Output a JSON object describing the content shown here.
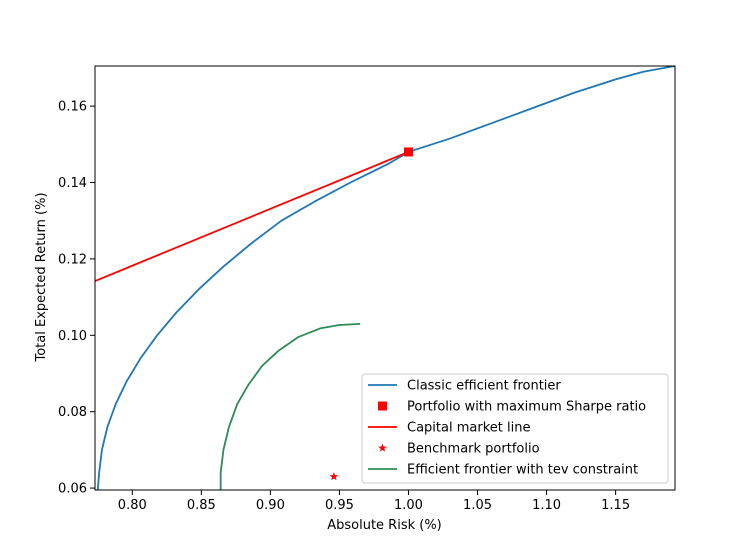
{
  "chart_data": {
    "type": "line",
    "xlabel": "Absolute Risk (%)",
    "ylabel": "Total Expected Return (%)",
    "xlim": [
      0.773,
      1.193
    ],
    "ylim": [
      0.0595,
      0.1705
    ],
    "grid": false,
    "legend_position": "bottom-right",
    "x_ticks": [
      {
        "value": 0.8,
        "label": "0.80"
      },
      {
        "value": 0.85,
        "label": "0.85"
      },
      {
        "value": 0.9,
        "label": "0.90"
      },
      {
        "value": 0.95,
        "label": "0.95"
      },
      {
        "value": 1.0,
        "label": "1.00"
      },
      {
        "value": 1.05,
        "label": "1.05"
      },
      {
        "value": 1.1,
        "label": "1.10"
      },
      {
        "value": 1.15,
        "label": "1.15"
      }
    ],
    "y_ticks": [
      {
        "value": 0.06,
        "label": "0.06"
      },
      {
        "value": 0.08,
        "label": "0.08"
      },
      {
        "value": 0.1,
        "label": "0.10"
      },
      {
        "value": 0.12,
        "label": "0.12"
      },
      {
        "value": 0.14,
        "label": "0.14"
      },
      {
        "value": 0.16,
        "label": "0.16"
      }
    ],
    "series": [
      {
        "name": "Classic efficient frontier",
        "kind": "line",
        "color": "#1f77b4",
        "x": [
          0.775,
          0.776,
          0.778,
          0.782,
          0.788,
          0.796,
          0.806,
          0.818,
          0.832,
          0.848,
          0.866,
          0.886,
          0.908,
          0.932,
          0.958,
          0.986,
          1.0,
          1.03,
          1.06,
          1.09,
          1.12,
          1.15,
          1.17,
          1.193
        ],
        "y": [
          0.0595,
          0.064,
          0.07,
          0.076,
          0.082,
          0.088,
          0.094,
          0.1,
          0.106,
          0.112,
          0.118,
          0.124,
          0.13,
          0.135,
          0.14,
          0.145,
          0.148,
          0.1515,
          0.1555,
          0.1595,
          0.1635,
          0.167,
          0.169,
          0.1705
        ]
      },
      {
        "name": "Portfolio with maximum Sharpe ratio",
        "kind": "marker",
        "marker": "square",
        "color": "#ff0000",
        "x": [
          1.0
        ],
        "y": [
          0.148
        ]
      },
      {
        "name": "Capital market line",
        "kind": "line",
        "color": "#ff0000",
        "x": [
          0.773,
          1.0
        ],
        "y": [
          0.1142,
          0.148
        ]
      },
      {
        "name": "Benchmark portfolio",
        "kind": "marker",
        "marker": "star",
        "color": "#ff0000",
        "x": [
          0.946
        ],
        "y": [
          0.063
        ]
      },
      {
        "name": "Efficient frontier with tev constraint",
        "kind": "line",
        "color": "#2e8b57",
        "x": [
          0.864,
          0.864,
          0.866,
          0.87,
          0.876,
          0.884,
          0.894,
          0.906,
          0.92,
          0.936,
          0.95,
          0.965
        ],
        "y": [
          0.0595,
          0.064,
          0.07,
          0.076,
          0.082,
          0.087,
          0.092,
          0.096,
          0.0995,
          0.1018,
          0.1027,
          0.103
        ]
      }
    ]
  }
}
